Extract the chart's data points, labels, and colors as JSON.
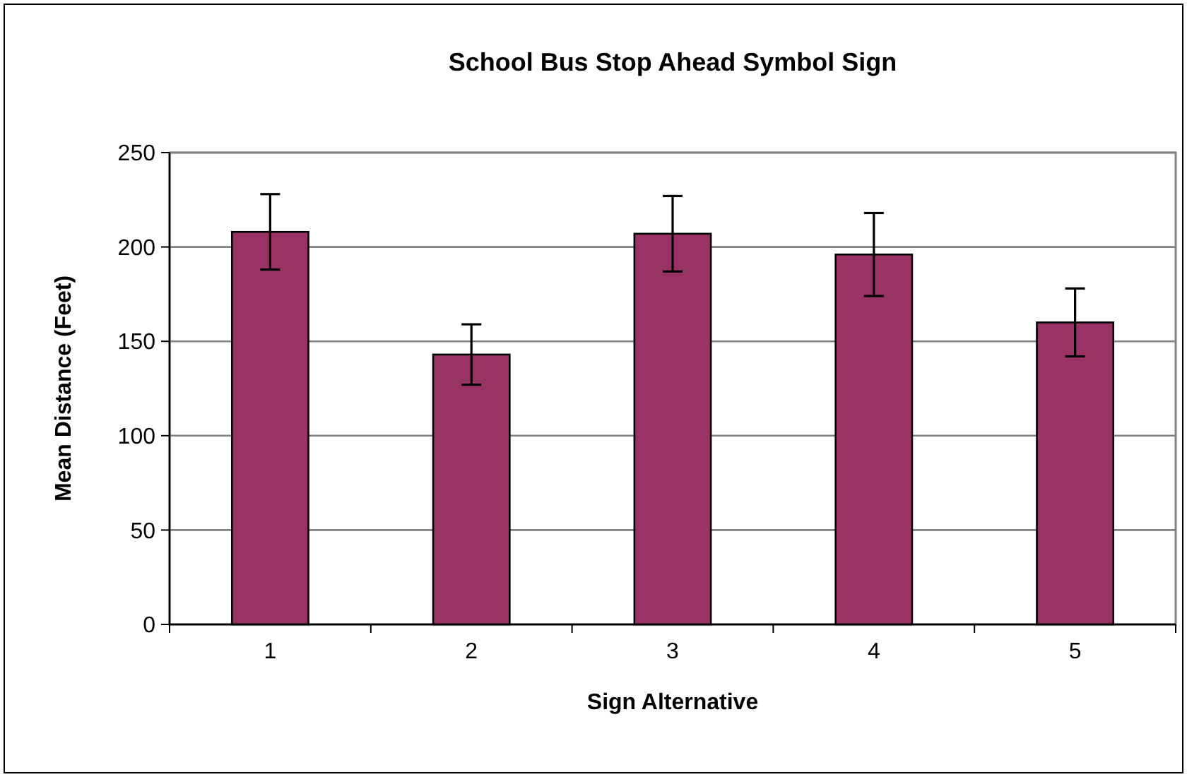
{
  "chart_data": {
    "type": "bar",
    "title": "School Bus Stop Ahead Symbol Sign",
    "xlabel": "Sign Alternative",
    "ylabel": "Mean Distance (Feet)",
    "categories": [
      "1",
      "2",
      "3",
      "4",
      "5"
    ],
    "values": [
      208,
      143,
      207,
      196,
      160
    ],
    "errors": [
      20,
      16,
      20,
      22,
      18
    ],
    "color": "#993366",
    "ylim": [
      0,
      250
    ],
    "yticks": [
      0,
      50,
      100,
      150,
      200,
      250
    ],
    "grid": "y"
  }
}
